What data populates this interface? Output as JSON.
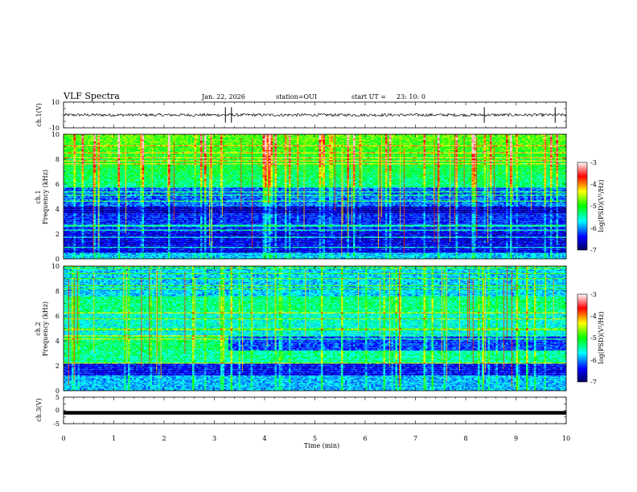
{
  "header": {
    "title": "VLF Spectra",
    "date": "Jan. 22, 2026",
    "station": "station=OUI",
    "start_label": "start UT =",
    "start_time": "23: 10: 0"
  },
  "chart_data": [
    {
      "id": "ch1-waveform",
      "type": "line",
      "ylabel": "ch.1(V)",
      "ylim": [
        -10,
        10
      ],
      "y_ticks": [
        "10",
        "-10"
      ],
      "baseline": 0,
      "spike_times_min": [
        3.22,
        3.34,
        8.37,
        9.78
      ]
    },
    {
      "id": "ch1-spectrogram",
      "type": "heatmap",
      "ylabel_line1": "ch.1",
      "ylabel_line2": "Frequency (kHz)",
      "xlim": [
        0,
        10
      ],
      "ylim": [
        0,
        10
      ],
      "y_ticks": [
        "0",
        "2",
        "4",
        "6",
        "8",
        "10"
      ],
      "colorbar": {
        "label": "log(PSD)(V²/Hz)",
        "ticks": [
          "-3",
          "-4",
          "-5",
          "-6",
          "-7"
        ],
        "range": [
          -7,
          -3
        ]
      },
      "noise_band_khz": [
        3.6,
        4.2
      ],
      "sferic_band_khz": [
        6.0,
        10.0
      ]
    },
    {
      "id": "ch2-spectrogram",
      "type": "heatmap",
      "ylabel_line1": "ch.2",
      "ylabel_line2": "Frequency (kHz)",
      "xlim": [
        0,
        10
      ],
      "ylim": [
        0,
        10
      ],
      "y_ticks": [
        "0",
        "2",
        "4",
        "6",
        "8",
        "10"
      ],
      "colorbar": {
        "label": "log(PSD)(V²/Hz)",
        "ticks": [
          "-3",
          "-4",
          "-5",
          "-6",
          "-7"
        ],
        "range": [
          -7,
          -3
        ]
      },
      "emission_band_khz": [
        2.6,
        7.2
      ],
      "band_change_time_min": 3.3
    },
    {
      "id": "ch3-waveform",
      "type": "line",
      "ylabel": "ch.3(V)",
      "ylim": [
        -5,
        5
      ],
      "y_ticks": [
        "5",
        "0",
        "-5"
      ],
      "baseline": -0.9
    }
  ],
  "xaxis": {
    "label": "Time (min)",
    "ticks": [
      "0",
      "1",
      "2",
      "3",
      "4",
      "5",
      "6",
      "7",
      "8",
      "9",
      "10"
    ],
    "range": [
      0,
      10
    ]
  },
  "colors": {
    "axis": "#000000",
    "background": "#ffffff"
  }
}
